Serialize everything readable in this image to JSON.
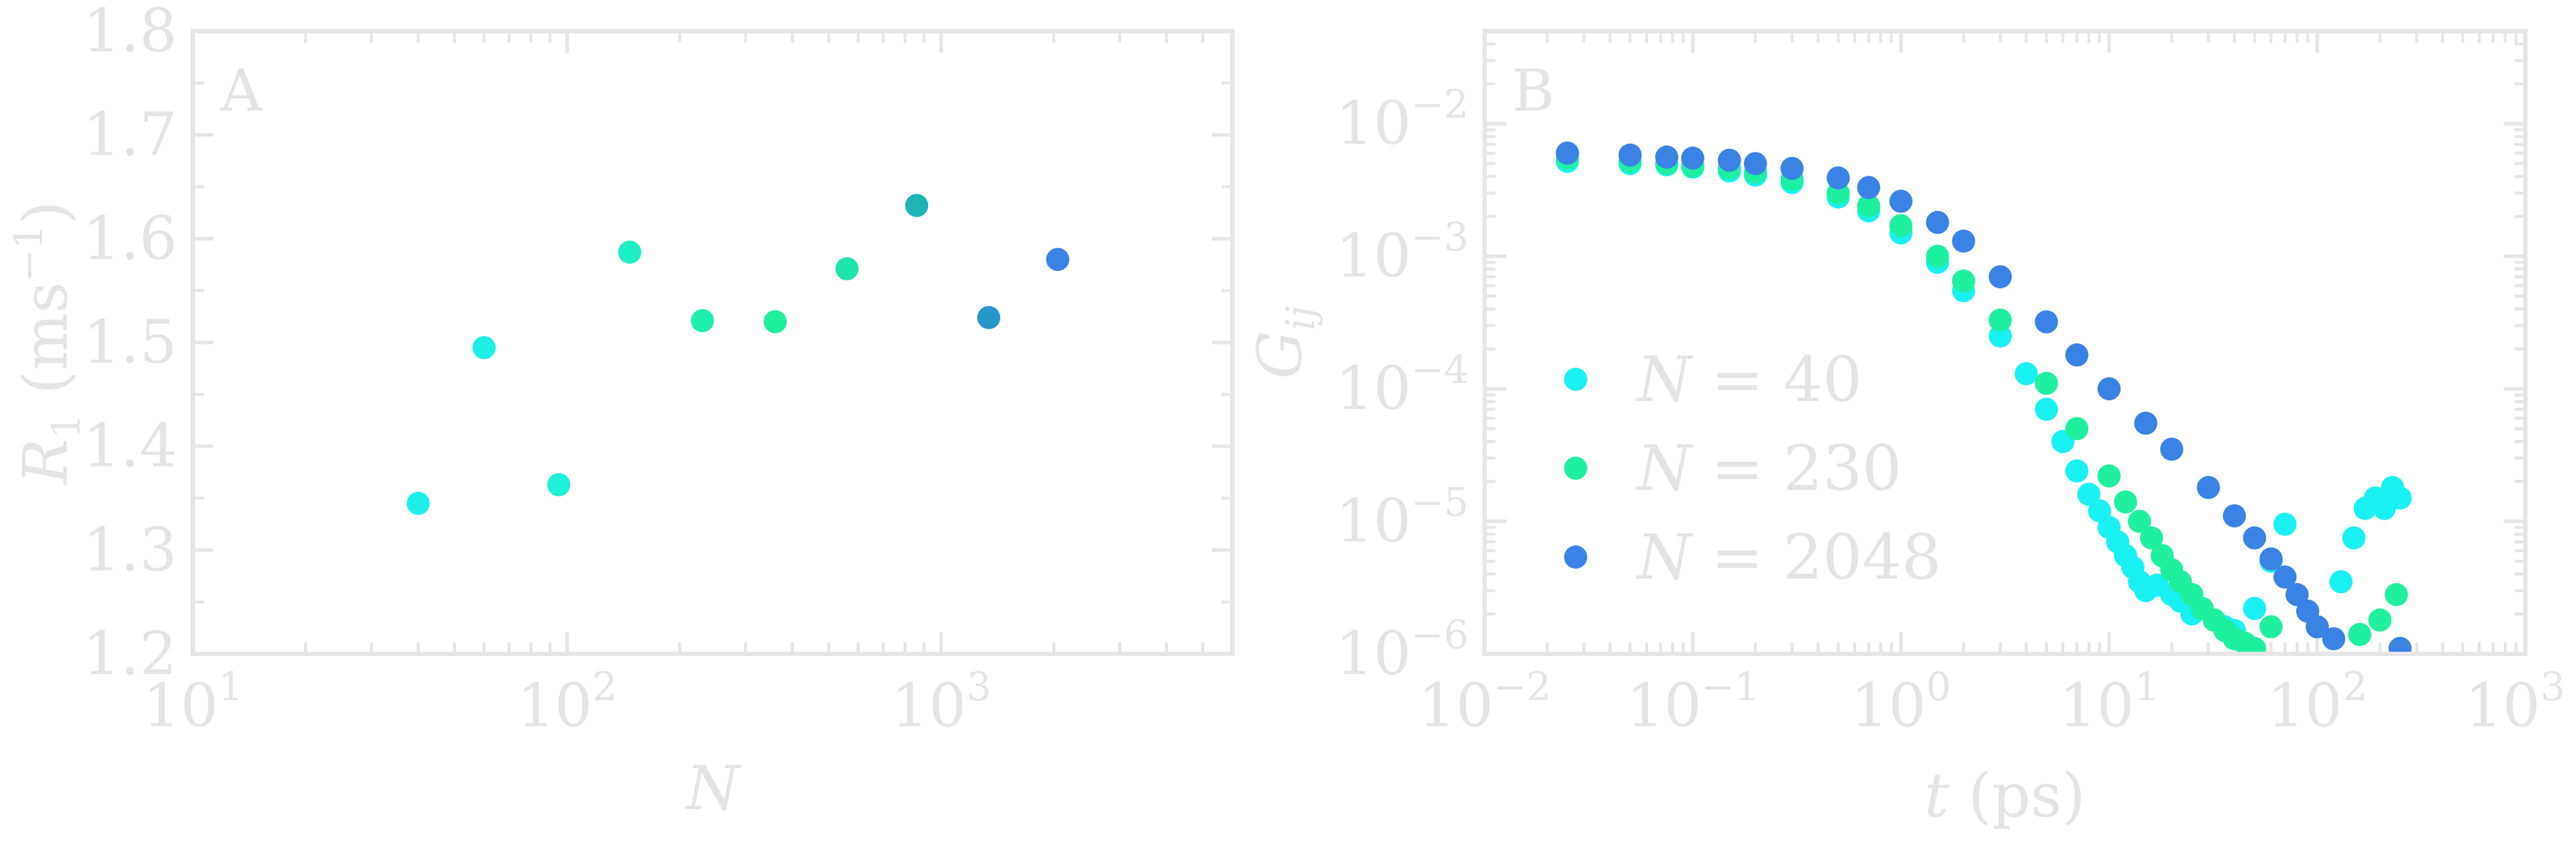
{
  "colors": {
    "frame": "#e6e6e6",
    "text": "#e4e4e4",
    "n40": "#19f0f2",
    "n230": "#1ef0a0",
    "n2048": "#3a82e4"
  },
  "chart_data": [
    {
      "type": "scatter",
      "panel_label": "A",
      "xlabel": "N",
      "ylabel": "R",
      "ylabel_sub": "1",
      "ylabel_units": " (ms",
      "ylabel_units_sup": "−1",
      "ylabel_units_close": ")",
      "xscale": "log",
      "xlim": [
        10,
        6000
      ],
      "ylim": [
        1.2,
        1.8
      ],
      "xtick_base": "10",
      "xtick_exponents": [
        "1",
        "2",
        "3"
      ],
      "yticks": [
        "1.2",
        "1.3",
        "1.4",
        "1.5",
        "1.6",
        "1.7",
        "1.8"
      ],
      "points": [
        {
          "x": 40,
          "y": 1.345,
          "color": "#1defe6"
        },
        {
          "x": 60,
          "y": 1.495,
          "color": "#1defe3"
        },
        {
          "x": 95,
          "y": 1.363,
          "color": "#1defd8"
        },
        {
          "x": 147,
          "y": 1.587,
          "color": "#1defc4"
        },
        {
          "x": 230,
          "y": 1.521,
          "color": "#1eefae"
        },
        {
          "x": 360,
          "y": 1.52,
          "color": "#1eef9c"
        },
        {
          "x": 560,
          "y": 1.571,
          "color": "#1fe4aa"
        },
        {
          "x": 860,
          "y": 1.632,
          "color": "#1fb3b8"
        },
        {
          "x": 1340,
          "y": 1.524,
          "color": "#2796cc"
        },
        {
          "x": 2048,
          "y": 1.58,
          "color": "#3a82e4"
        }
      ]
    },
    {
      "type": "scatter",
      "panel_label": "B",
      "xlabel": "t",
      "xlabel_units": " (ps)",
      "ylabel": "G",
      "ylabel_sub": "ij",
      "xscale": "log",
      "yscale": "log",
      "xlim": [
        0.01,
        1000
      ],
      "ylim": [
        1e-06,
        0.05
      ],
      "xtick_base": "10",
      "xtick_exponents": [
        "−2",
        "−1",
        "0",
        "1",
        "2",
        "3"
      ],
      "ytick_base": "10",
      "ytick_exponents": [
        "−6",
        "−5",
        "−4",
        "−3",
        "−2"
      ],
      "legend": {
        "position": "center-left",
        "entries": [
          {
            "var": "N",
            "text": " = 40",
            "color": "#19f0f2"
          },
          {
            "var": "N",
            "text": " = 230",
            "color": "#1ef0a0"
          },
          {
            "var": "N",
            "text": " = 2048",
            "color": "#3a82e4"
          }
        ]
      },
      "series": [
        {
          "name": "N = 40",
          "color": "#19f0f2",
          "x": [
            0.025,
            0.05,
            0.075,
            0.1,
            0.15,
            0.2,
            0.3,
            0.5,
            0.7,
            1,
            1.5,
            2,
            3,
            4,
            5,
            6,
            7,
            8,
            9,
            10,
            11,
            12,
            13,
            14,
            15,
            17,
            20,
            22,
            25,
            28,
            32,
            36,
            40,
            50,
            60,
            70,
            130,
            150,
            170,
            190,
            210,
            230,
            250
          ],
          "y": [
            0.0052,
            0.005,
            0.0049,
            0.0047,
            0.0044,
            0.0041,
            0.0036,
            0.0028,
            0.0022,
            0.0015,
            0.0009,
            0.00055,
            0.00025,
            0.00013,
            7e-05,
            4e-05,
            2.4e-05,
            1.6e-05,
            1.2e-05,
            9e-06,
            7e-06,
            5.5e-06,
            4.5e-06,
            3.5e-06,
            3e-06,
            3.3e-06,
            2.8e-06,
            2.5e-06,
            2e-06,
            2.2e-06,
            1.8e-06,
            1.6e-06,
            1.5e-06,
            2.2e-06,
            5e-06,
            9.5e-06,
            3.5e-06,
            7.5e-06,
            1.25e-05,
            1.5e-05,
            1.25e-05,
            1.8e-05,
            1.5e-05
          ]
        },
        {
          "name": "N = 230",
          "color": "#1ef0a0",
          "x": [
            0.025,
            0.05,
            0.075,
            0.1,
            0.15,
            0.2,
            0.3,
            0.5,
            0.7,
            1,
            1.5,
            2,
            3,
            5,
            7,
            10,
            12,
            14,
            16,
            18,
            20,
            22,
            25,
            28,
            32,
            36,
            40,
            45,
            50,
            60,
            160,
            200,
            240
          ],
          "y": [
            0.0055,
            0.0052,
            0.005,
            0.0048,
            0.0046,
            0.0043,
            0.0038,
            0.003,
            0.0024,
            0.0017,
            0.001,
            0.00065,
            0.00033,
            0.00011,
            5e-05,
            2.2e-05,
            1.4e-05,
            1e-05,
            7.5e-06,
            5.5e-06,
            4.3e-06,
            3.5e-06,
            2.8e-06,
            2.2e-06,
            1.8e-06,
            1.5e-06,
            1.3e-06,
            1.2e-06,
            1.1e-06,
            1.6e-06,
            1.4e-06,
            1.8e-06,
            2.8e-06
          ]
        },
        {
          "name": "N = 2048",
          "color": "#3a82e4",
          "x": [
            0.025,
            0.05,
            0.075,
            0.1,
            0.15,
            0.2,
            0.3,
            0.5,
            0.7,
            1,
            1.5,
            2,
            3,
            5,
            7,
            10,
            15,
            20,
            30,
            40,
            50,
            60,
            70,
            80,
            90,
            100,
            120,
            250
          ],
          "y": [
            0.006,
            0.0058,
            0.0056,
            0.0055,
            0.0053,
            0.005,
            0.0046,
            0.0039,
            0.0033,
            0.0026,
            0.0018,
            0.0013,
            0.0007,
            0.00032,
            0.00018,
            0.0001,
            5.5e-05,
            3.5e-05,
            1.8e-05,
            1.1e-05,
            7.5e-06,
            5.2e-06,
            3.8e-06,
            2.8e-06,
            2.1e-06,
            1.6e-06,
            1.3e-06,
            1.1e-06
          ]
        }
      ]
    }
  ]
}
